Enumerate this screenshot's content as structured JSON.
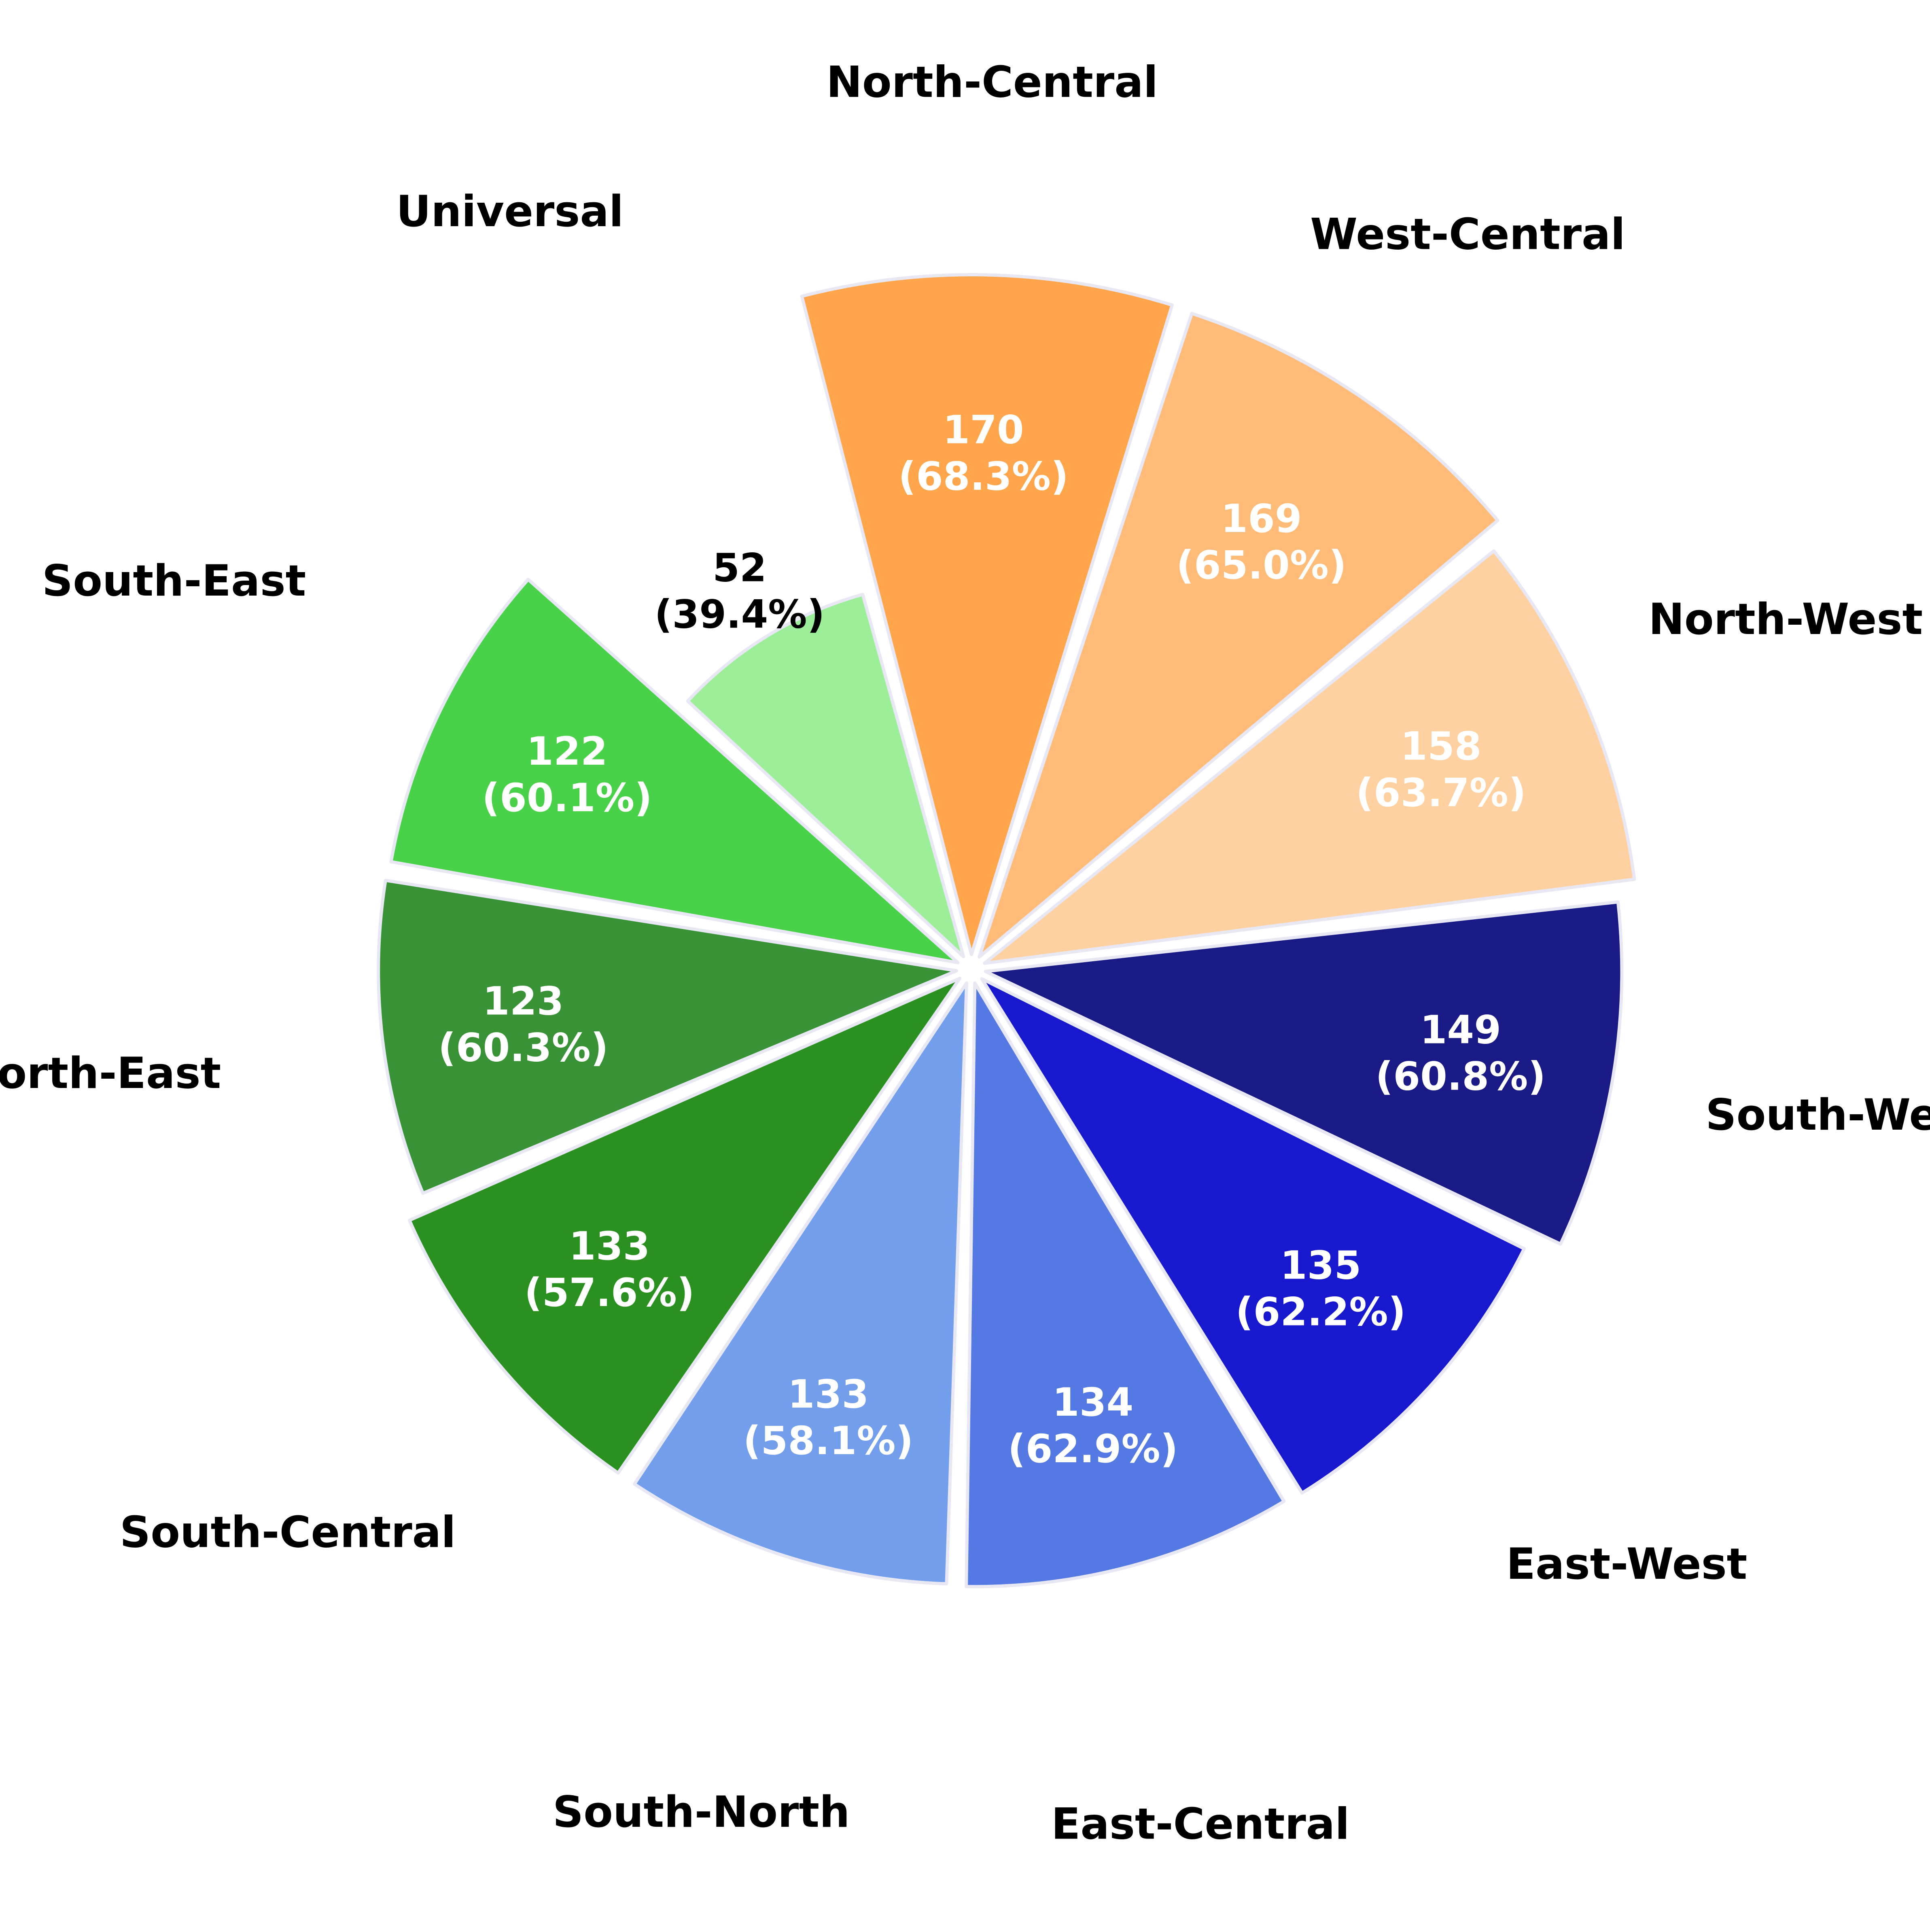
{
  "chart_data": {
    "type": "polar-bar",
    "title": "",
    "categories": [
      "North-Central",
      "West-Central",
      "North-West",
      "South-West",
      "East-West",
      "East-Central",
      "South-North",
      "South-Central",
      "North-East",
      "South-East",
      "Universal"
    ],
    "values": [
      170,
      169,
      158,
      149,
      135,
      134,
      133,
      133,
      123,
      122,
      52
    ],
    "percentages": [
      "68.3%",
      "65.0%",
      "63.7%",
      "60.8%",
      "62.2%",
      "62.9%",
      "58.1%",
      "57.6%",
      "60.3%",
      "60.1%",
      "39.4%"
    ],
    "value_labels": [
      [
        "170",
        "(68.3%)"
      ],
      [
        "169",
        "(65.0%)"
      ],
      [
        "158",
        "(63.7%)"
      ],
      [
        "149",
        "(60.8%)"
      ],
      [
        "135",
        "(62.2%)"
      ],
      [
        "134",
        "(62.9%)"
      ],
      [
        "133",
        "(58.1%)"
      ],
      [
        "133",
        "(57.6%)"
      ],
      [
        "123",
        "(60.3%)"
      ],
      [
        "122",
        "(60.1%)"
      ],
      [
        "52",
        "(39.4%)"
      ]
    ],
    "colors": [
      "#FFA64D",
      "#FFBB78",
      "#FFD0A0",
      "#1A1A87",
      "#1818CF",
      "#5479E2",
      "#739EEC",
      "#2A9120",
      "#399236",
      "#49D249",
      "#9DEE98"
    ],
    "value_label_colors": [
      "#FFFFFF",
      "#FFFFFF",
      "#FFFFFF",
      "#FFFFFF",
      "#FFFFFF",
      "#FFFFFF",
      "#FFFFFF",
      "#FFFFFF",
      "#FFFFFF",
      "#FFFFFF",
      "#000000"
    ],
    "edge_color": "#E8E8F4",
    "start_angle_deg": -15,
    "direction": "clockwise",
    "legend": "none",
    "grid": false
  }
}
